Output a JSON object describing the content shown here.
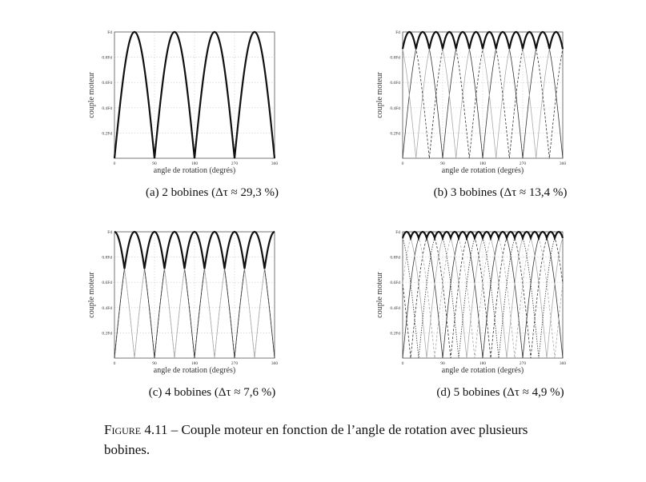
{
  "chart_data": [
    {
      "type": "line",
      "caption": "(a) 2 bobines (Δτ ≈ 29,3 %)",
      "xlabel": "angle de rotation (degrés)",
      "ylabel": "couple moteur",
      "xticks": [
        "0",
        "90",
        "180",
        "270",
        "360"
      ],
      "yticks": [
        "0.2Fd",
        "0.4Fd",
        "0.6Fd",
        "0.8Fd",
        "Fd"
      ],
      "xlim": [
        0,
        360
      ],
      "ylim": [
        0,
        1
      ],
      "grid": true,
      "coils": 2,
      "function": "|sin(2·(θ + k·180°/n))|, k = 0…n−1",
      "envelope": "max over coils (bold)",
      "ripple_percent": 29.3
    },
    {
      "type": "line",
      "caption": "(b) 3 bobines (Δτ ≈ 13,4 %)",
      "xlabel": "angle de rotation (degrés)",
      "ylabel": "couple moteur",
      "xticks": [
        "0",
        "90",
        "180",
        "270",
        "360"
      ],
      "yticks": [
        "0.2Fd",
        "0.4Fd",
        "0.6Fd",
        "0.8Fd",
        "Fd"
      ],
      "xlim": [
        0,
        360
      ],
      "ylim": [
        0,
        1
      ],
      "grid": true,
      "coils": 3,
      "function": "|sin(2·(θ + k·180°/n))|, k = 0…n−1",
      "envelope": "max over coils (bold)",
      "ripple_percent": 13.4
    },
    {
      "type": "line",
      "caption": "(c) 4 bobines (Δτ ≈ 7,6 %)",
      "xlabel": "angle de rotation (degrés)",
      "ylabel": "couple moteur",
      "xticks": [
        "0",
        "90",
        "180",
        "270",
        "360"
      ],
      "yticks": [
        "0.2Fd",
        "0.4Fd",
        "0.6Fd",
        "0.8Fd",
        "Fd"
      ],
      "xlim": [
        0,
        360
      ],
      "ylim": [
        0,
        1
      ],
      "grid": true,
      "coils": 4,
      "function": "|sin(2·(θ + k·180°/n))|, k = 0…n−1",
      "envelope": "max over coils (bold)",
      "ripple_percent": 7.6
    },
    {
      "type": "line",
      "caption": "(d) 5 bobines (Δτ ≈ 4,9 %)",
      "xlabel": "angle de rotation (degrés)",
      "ylabel": "couple moteur",
      "xticks": [
        "0",
        "90",
        "180",
        "270",
        "360"
      ],
      "yticks": [
        "0.2Fd",
        "0.4Fd",
        "0.6Fd",
        "0.8Fd",
        "Fd"
      ],
      "xlim": [
        0,
        360
      ],
      "ylim": [
        0,
        1
      ],
      "grid": true,
      "coils": 5,
      "function": "|sin(2·(θ + k·180°/n))|, k = 0…n−1",
      "envelope": "max over coils (bold)",
      "ripple_percent": 4.9
    }
  ],
  "figure_caption": {
    "label": "Figure 4.11",
    "text": " – Couple moteur en fonction de l’angle de rotation avec plusieurs bobines."
  },
  "colors": {
    "envelope": "#111111",
    "coil_dark": "#333333",
    "coil_light": "#aaaaaa",
    "grid": "#cccccc"
  }
}
